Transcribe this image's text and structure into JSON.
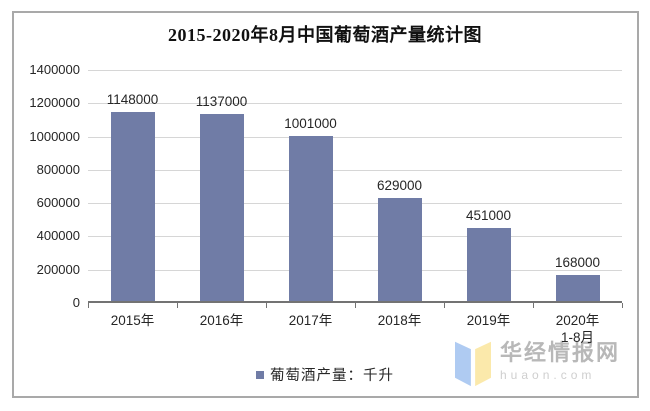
{
  "chart_data": {
    "type": "bar",
    "title": "2015-2020年8月中国葡萄酒产量统计图",
    "categories": [
      "2015年",
      "2016年",
      "2017年",
      "2018年",
      "2019年",
      "2020年"
    ],
    "category_sublabels": [
      "",
      "",
      "",
      "",
      "",
      "1-8月"
    ],
    "values": [
      1148000,
      1137000,
      1001000,
      629000,
      451000,
      168000
    ],
    "data_labels": [
      "1148000",
      "1137000",
      "1001000",
      "629000",
      "451000",
      "168000"
    ],
    "series_name": "葡萄酒产量：千升",
    "xlabel": "",
    "ylabel": "",
    "ylim": [
      0,
      1400000
    ],
    "yticks": [
      0,
      200000,
      400000,
      600000,
      800000,
      1000000,
      1200000,
      1400000
    ],
    "grid": true,
    "legend_position": "bottom"
  },
  "legend": {
    "label": "葡萄酒产量：千升"
  },
  "watermark": {
    "site_name": "华经情报网",
    "site_url": "huaon.com"
  },
  "colors": {
    "bar": "#707CA6",
    "gridline": "#D6D6D6",
    "axis": "#737373",
    "text": "#262626",
    "title": "#111111",
    "frame_border": "#A9A9A9",
    "watermark_text": "#B2B2B2",
    "watermark_url": "#CBCBCB",
    "logo_blue": "#A9C7F1",
    "logo_yellow": "#FBE8A4"
  }
}
